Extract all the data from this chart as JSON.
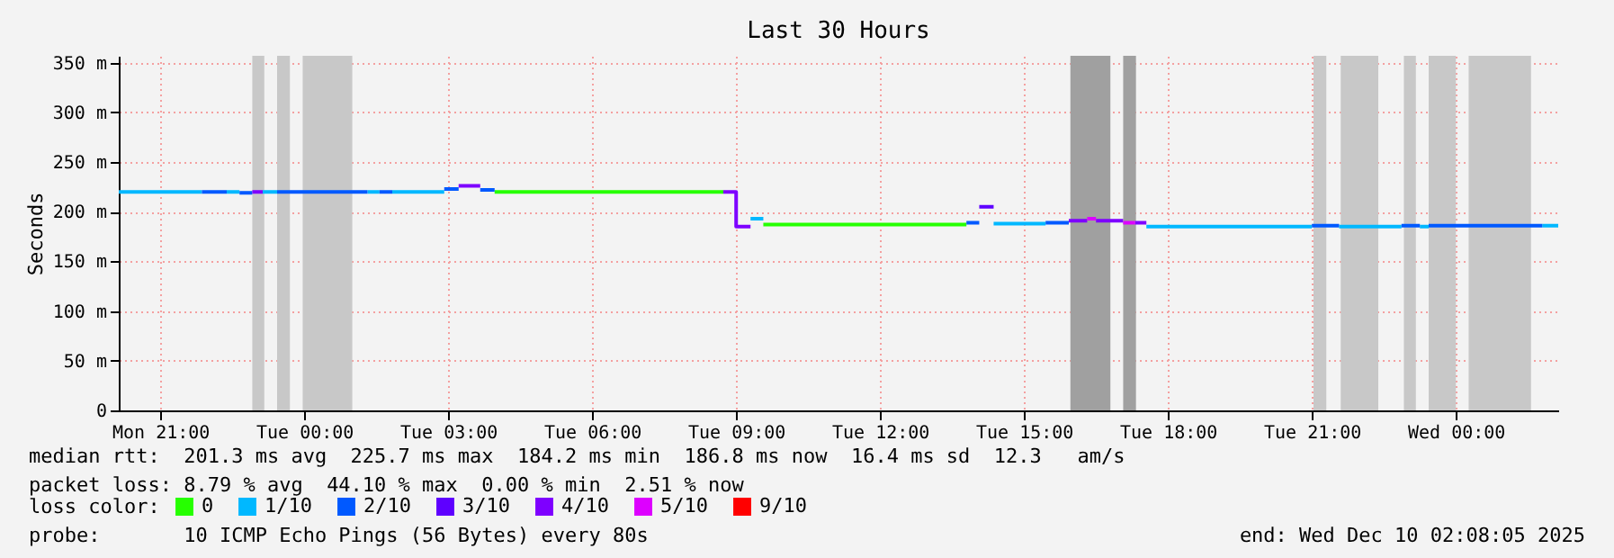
{
  "chart_data": {
    "type": "step",
    "title": "Last 30 Hours",
    "ylabel": "Seconds",
    "legend_title": "loss color:",
    "legend": "bottom",
    "grid": true,
    "xlim": [
      "2025-12-08T20:08",
      "2025-12-10T02:08"
    ],
    "xticks": [
      {
        "value": "2025-12-08T21:00",
        "label": "Mon 21:00"
      },
      {
        "value": "2025-12-09T00:00",
        "label": "Tue 00:00"
      },
      {
        "value": "2025-12-09T03:00",
        "label": "Tue 03:00"
      },
      {
        "value": "2025-12-09T06:00",
        "label": "Tue 06:00"
      },
      {
        "value": "2025-12-09T09:00",
        "label": "Tue 09:00"
      },
      {
        "value": "2025-12-09T12:00",
        "label": "Tue 12:00"
      },
      {
        "value": "2025-12-09T15:00",
        "label": "Tue 15:00"
      },
      {
        "value": "2025-12-09T18:00",
        "label": "Tue 18:00"
      },
      {
        "value": "2025-12-09T21:00",
        "label": "Tue 21:00"
      },
      {
        "value": "2025-12-10T00:00",
        "label": "Wed 00:00"
      }
    ],
    "ylim": [
      0,
      357
    ],
    "yticks": [
      0,
      {
        "value": 50,
        "label": "50 m"
      },
      {
        "value": 100,
        "label": "100 m"
      },
      {
        "value": 150,
        "label": "150 m"
      },
      {
        "value": 200,
        "label": "200 m"
      },
      {
        "value": 250,
        "label": "250 m"
      },
      {
        "value": 300,
        "label": "300 m"
      },
      {
        "value": 350,
        "label": "350 m"
      }
    ],
    "series": [
      {
        "name": "0",
        "color": "#26ff00",
        "x": [
          "2025-12-09T03:58",
          "2025-12-09T08:44",
          "2025-12-09T08:45",
          "2025-12-09T09:34",
          "2025-12-09T13:48"
        ],
        "values": [
          220,
          220,
          null,
          187,
          187
        ]
      },
      {
        "name": "1/10",
        "color": "#00b8ff",
        "x": [
          "2025-12-08T20:08",
          "2025-12-08T21:52",
          "2025-12-08T21:53",
          "2025-12-08T22:23",
          "2025-12-08T22:39",
          "2025-12-08T22:40",
          "2025-12-08T23:08",
          "2025-12-08T23:26",
          "2025-12-08T23:27",
          "2025-12-09T01:19",
          "2025-12-09T01:34",
          "2025-12-09T01:35",
          "2025-12-09T01:50",
          "2025-12-09T02:55",
          "2025-12-09T02:56",
          "2025-12-09T09:18",
          "2025-12-09T09:34",
          "2025-12-09T09:35",
          "2025-12-09T14:22",
          "2025-12-09T15:27",
          "2025-12-09T15:28",
          "2025-12-09T17:33",
          "2025-12-09T21:00",
          "2025-12-09T21:01",
          "2025-12-09T21:34",
          "2025-12-09T22:52",
          "2025-12-09T22:53",
          "2025-12-09T23:15",
          "2025-12-09T23:26",
          "2025-12-09T23:27",
          "2025-12-10T01:48",
          "2025-12-10T02:08"
        ],
        "values": [
          220,
          220,
          null,
          220,
          220,
          null,
          220,
          220,
          null,
          220,
          220,
          null,
          220,
          220,
          null,
          193,
          193,
          null,
          188,
          188,
          null,
          185,
          185,
          null,
          185,
          185,
          null,
          185,
          185,
          null,
          186,
          186
        ]
      },
      {
        "name": "2/10",
        "color": "#0059ff",
        "x": [
          "2025-12-08T21:52",
          "2025-12-08T22:23",
          "2025-12-08T22:24",
          "2025-12-08T22:39",
          "2025-12-08T22:55",
          "2025-12-08T22:56",
          "2025-12-08T23:26",
          "2025-12-09T01:19",
          "2025-12-09T01:20",
          "2025-12-09T01:34",
          "2025-12-09T01:50",
          "2025-12-09T01:51",
          "2025-12-09T02:55",
          "2025-12-09T03:13",
          "2025-12-09T03:14",
          "2025-12-09T03:40",
          "2025-12-09T03:58",
          "2025-12-09T03:59",
          "2025-12-09T13:48",
          "2025-12-09T14:04",
          "2025-12-09T14:05",
          "2025-12-09T15:27",
          "2025-12-09T15:56",
          "2025-12-09T15:57",
          "2025-12-09T21:00",
          "2025-12-09T21:34",
          "2025-12-09T21:35",
          "2025-12-09T22:52",
          "2025-12-09T23:15",
          "2025-12-09T23:16",
          "2025-12-09T23:26",
          "2025-12-10T01:48"
        ],
        "values": [
          220,
          220,
          null,
          219,
          219,
          null,
          220,
          220,
          null,
          220,
          220,
          null,
          223,
          223,
          null,
          222,
          222,
          null,
          189,
          189,
          null,
          189,
          189,
          null,
          186,
          186,
          null,
          186,
          186,
          null,
          186,
          186
        ]
      },
      {
        "name": "3/10",
        "color": "#5e00ff",
        "x": [
          "2025-12-09T14:04",
          "2025-12-09T14:22"
        ],
        "values": [
          205,
          205
        ]
      },
      {
        "name": "4/10",
        "color": "#7e00ff",
        "x": [
          "2025-12-08T22:55",
          "2025-12-08T23:08",
          "2025-12-08T23:09",
          "2025-12-09T03:13",
          "2025-12-09T03:40",
          "2025-12-09T03:41",
          "2025-12-09T08:44",
          "2025-12-09T09:00",
          "2025-12-09T09:18",
          "2025-12-09T09:19",
          "2025-12-09T15:56",
          "2025-12-09T16:19",
          "2025-12-09T16:20",
          "2025-12-09T16:30",
          "2025-12-09T17:04",
          "2025-12-09T17:05",
          "2025-12-09T17:19",
          "2025-12-09T17:33"
        ],
        "values": [
          220,
          220,
          null,
          226,
          226,
          null,
          220,
          185,
          185,
          null,
          191,
          191,
          null,
          191,
          191,
          null,
          189,
          189
        ]
      },
      {
        "name": "5/10",
        "color": "#dd00ff",
        "x": [
          "2025-12-09T16:19",
          "2025-12-09T16:30",
          "2025-12-09T16:31",
          "2025-12-09T17:04",
          "2025-12-09T17:19"
        ],
        "values": [
          193,
          193,
          null,
          189,
          189
        ]
      },
      {
        "name": "9/10",
        "color": "#ff0000"
      }
    ],
    "bands": [
      {
        "axis": "x",
        "from": "2025-12-08T22:55",
        "to": "2025-12-08T23:10",
        "color": "#c8c8c8"
      },
      {
        "axis": "x",
        "from": "2025-12-08T23:26",
        "to": "2025-12-08T23:42",
        "color": "#c8c8c8"
      },
      {
        "axis": "x",
        "from": "2025-12-08T23:58",
        "to": "2025-12-09T01:00",
        "color": "#c8c8c8"
      },
      {
        "axis": "x",
        "from": "2025-12-09T15:58",
        "to": "2025-12-09T16:48",
        "color": "#a0a0a0"
      },
      {
        "axis": "x",
        "from": "2025-12-09T17:04",
        "to": "2025-12-09T17:20",
        "color": "#a0a0a0"
      },
      {
        "axis": "x",
        "from": "2025-12-09T21:02",
        "to": "2025-12-09T21:18",
        "color": "#c8c8c8"
      },
      {
        "axis": "x",
        "from": "2025-12-09T21:36",
        "to": "2025-12-09T22:23",
        "color": "#c8c8c8"
      },
      {
        "axis": "x",
        "from": "2025-12-09T22:55",
        "to": "2025-12-09T23:10",
        "color": "#c8c8c8"
      },
      {
        "axis": "x",
        "from": "2025-12-09T23:26",
        "to": "2025-12-10T00:00",
        "color": "#c8c8c8"
      },
      {
        "axis": "x",
        "from": "2025-12-10T00:16",
        "to": "2025-12-10T01:34",
        "color": "#c8c8c8"
      }
    ],
    "annotations": [
      "median rtt:  201.3 ms avg  225.7 ms max  184.2 ms min  186.8 ms now  16.4 ms sd  12.3   am/s",
      "packet loss: 8.79 % avg  44.10 % max  0.00 % min  2.51 % now",
      "probe:       10 ICMP Echo Pings (56 Bytes) every 80s",
      "end: Wed Dec 10 02:08:05 2025"
    ]
  }
}
